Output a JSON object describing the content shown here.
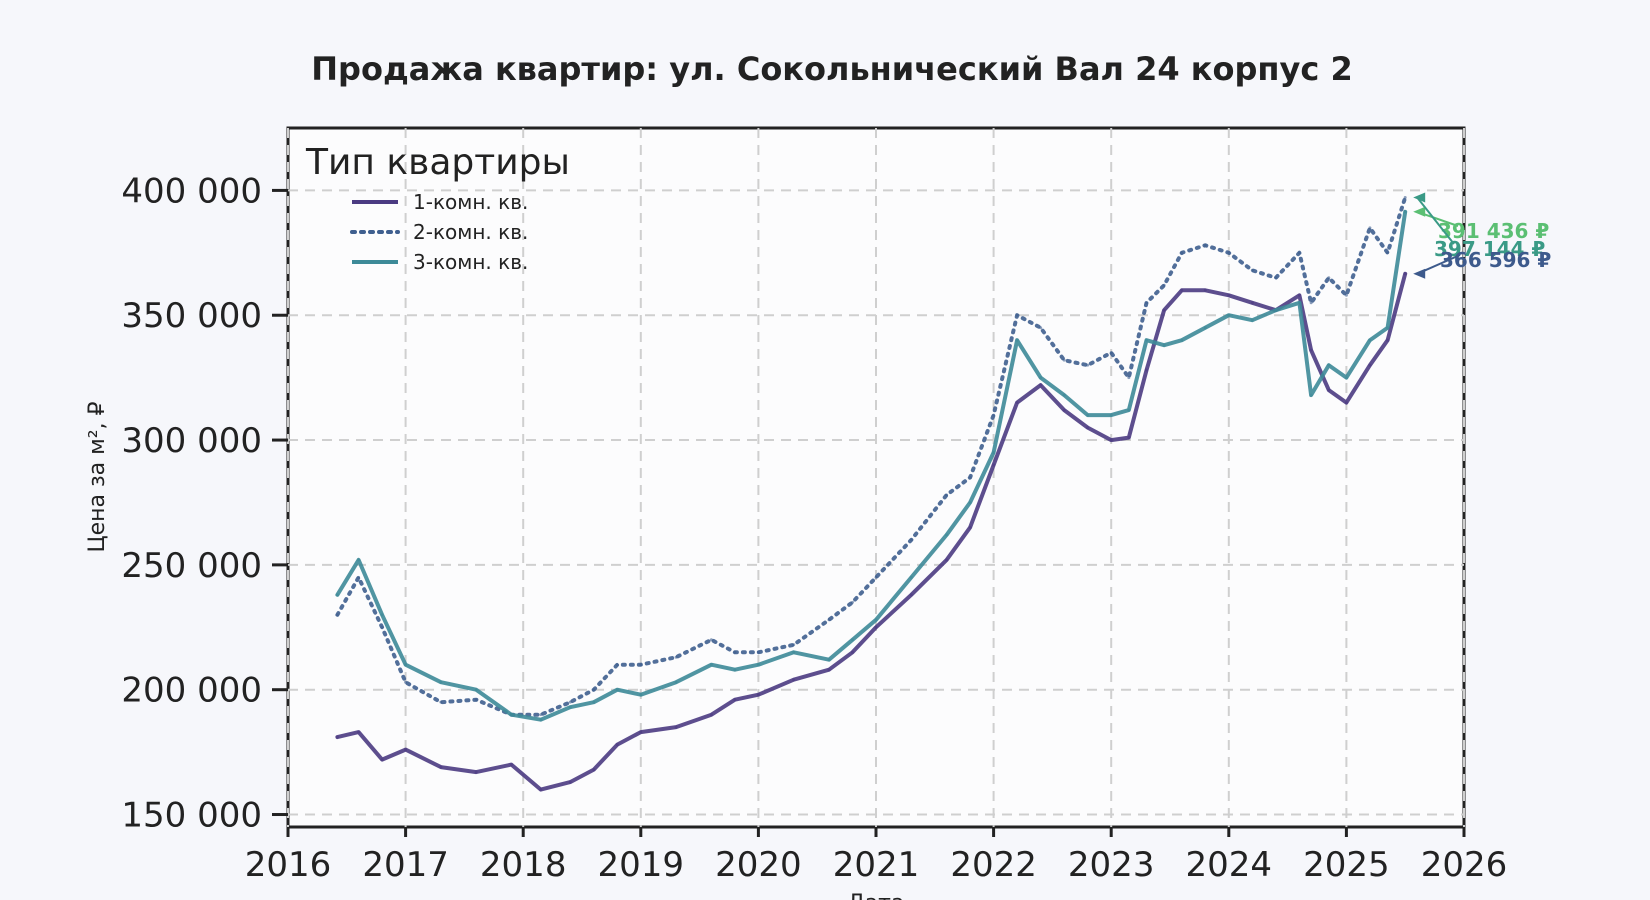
{
  "chart_data": {
    "type": "line",
    "title": "Продажа квартир: ул. Сокольнический Вал 24 корпус 2",
    "xlabel": "Дата",
    "ylabel": "Цена за м², ₽",
    "xlim": [
      2016,
      2026
    ],
    "ylim": [
      145000,
      425000
    ],
    "grid": true,
    "legend_title": "Тип квартиры",
    "legend_position": "top-left",
    "x_ticks": [
      2016,
      2017,
      2018,
      2019,
      2020,
      2021,
      2022,
      2023,
      2024,
      2025,
      2026
    ],
    "x_tick_labels": [
      "2016",
      "2017",
      "2018",
      "2019",
      "2020",
      "2021",
      "2022",
      "2023",
      "2024",
      "2025",
      "2026"
    ],
    "y_ticks": [
      150000,
      200000,
      250000,
      300000,
      350000,
      400000
    ],
    "y_tick_labels": [
      "150 000",
      "200 000",
      "250 000",
      "300 000",
      "350 000",
      "400 000"
    ],
    "series": [
      {
        "name": "1-комн. кв.",
        "color": "#4b3b82",
        "style": "solid",
        "x": [
          2016.42,
          2016.6,
          2016.8,
          2017.0,
          2017.3,
          2017.6,
          2017.9,
          2018.15,
          2018.4,
          2018.6,
          2018.8,
          2019.0,
          2019.3,
          2019.6,
          2019.8,
          2020.0,
          2020.3,
          2020.6,
          2020.8,
          2021.0,
          2021.3,
          2021.6,
          2021.8,
          2022.0,
          2022.2,
          2022.4,
          2022.6,
          2022.8,
          2023.0,
          2023.15,
          2023.3,
          2023.45,
          2023.6,
          2023.8,
          2024.0,
          2024.2,
          2024.4,
          2024.6,
          2024.7,
          2024.85,
          2025.0,
          2025.2,
          2025.35,
          2025.5
        ],
        "values": [
          181000,
          183000,
          172000,
          176000,
          169000,
          167000,
          170000,
          160000,
          163000,
          168000,
          178000,
          183000,
          185000,
          190000,
          196000,
          198000,
          204000,
          208000,
          215000,
          225000,
          238000,
          252000,
          265000,
          290000,
          315000,
          322000,
          312000,
          305000,
          300000,
          301000,
          328000,
          352000,
          360000,
          360000,
          358000,
          355000,
          352000,
          358000,
          336000,
          320000,
          315000,
          330000,
          340000,
          366596
        ]
      },
      {
        "name": "2-комн. кв.",
        "color": "#3f5f8f",
        "style": "dotted",
        "x": [
          2016.42,
          2016.6,
          2016.8,
          2017.0,
          2017.3,
          2017.6,
          2017.9,
          2018.15,
          2018.4,
          2018.6,
          2018.8,
          2019.0,
          2019.3,
          2019.6,
          2019.8,
          2020.0,
          2020.3,
          2020.6,
          2020.8,
          2021.0,
          2021.3,
          2021.6,
          2021.8,
          2022.0,
          2022.2,
          2022.4,
          2022.6,
          2022.8,
          2023.0,
          2023.15,
          2023.3,
          2023.45,
          2023.6,
          2023.8,
          2024.0,
          2024.2,
          2024.4,
          2024.6,
          2024.7,
          2024.85,
          2025.0,
          2025.2,
          2025.35,
          2025.5
        ],
        "values": [
          230000,
          245000,
          225000,
          203000,
          195000,
          196000,
          190000,
          190000,
          195000,
          200000,
          210000,
          210000,
          213000,
          220000,
          215000,
          215000,
          218000,
          228000,
          235000,
          245000,
          260000,
          278000,
          285000,
          310000,
          350000,
          345000,
          332000,
          330000,
          335000,
          325000,
          355000,
          362000,
          375000,
          378000,
          375000,
          368000,
          365000,
          375000,
          355000,
          365000,
          358000,
          385000,
          375000,
          397144
        ]
      },
      {
        "name": "3-комн. кв.",
        "color": "#3d8a98",
        "style": "solid",
        "x": [
          2016.42,
          2016.6,
          2016.8,
          2017.0,
          2017.3,
          2017.6,
          2017.9,
          2018.15,
          2018.4,
          2018.6,
          2018.8,
          2019.0,
          2019.3,
          2019.6,
          2019.8,
          2020.0,
          2020.3,
          2020.6,
          2020.8,
          2021.0,
          2021.3,
          2021.6,
          2021.8,
          2022.0,
          2022.2,
          2022.4,
          2022.6,
          2022.8,
          2023.0,
          2023.15,
          2023.3,
          2023.45,
          2023.6,
          2023.8,
          2024.0,
          2024.2,
          2024.4,
          2024.6,
          2024.7,
          2024.85,
          2025.0,
          2025.2,
          2025.35,
          2025.5
        ],
        "values": [
          238000,
          252000,
          230000,
          210000,
          203000,
          200000,
          190000,
          188000,
          193000,
          195000,
          200000,
          198000,
          203000,
          210000,
          208000,
          210000,
          215000,
          212000,
          220000,
          228000,
          245000,
          262000,
          275000,
          295000,
          340000,
          325000,
          318000,
          310000,
          310000,
          312000,
          340000,
          338000,
          340000,
          345000,
          350000,
          348000,
          352000,
          355000,
          318000,
          330000,
          325000,
          340000,
          345000,
          391436
        ]
      }
    ],
    "annotations": [
      {
        "text": "391 436 ₽",
        "series": "3-комн. кв.",
        "color": "#5bbf73",
        "x": 2025.5,
        "value": 391436
      },
      {
        "text": "397 144 ₽",
        "series": "2-комн. кв.",
        "color": "#3a9a86",
        "x": 2025.5,
        "value": 397144
      },
      {
        "text": "366 596 ₽",
        "series": "1-комн. кв.",
        "color": "#3d5a8c",
        "x": 2025.5,
        "value": 366596
      }
    ]
  }
}
